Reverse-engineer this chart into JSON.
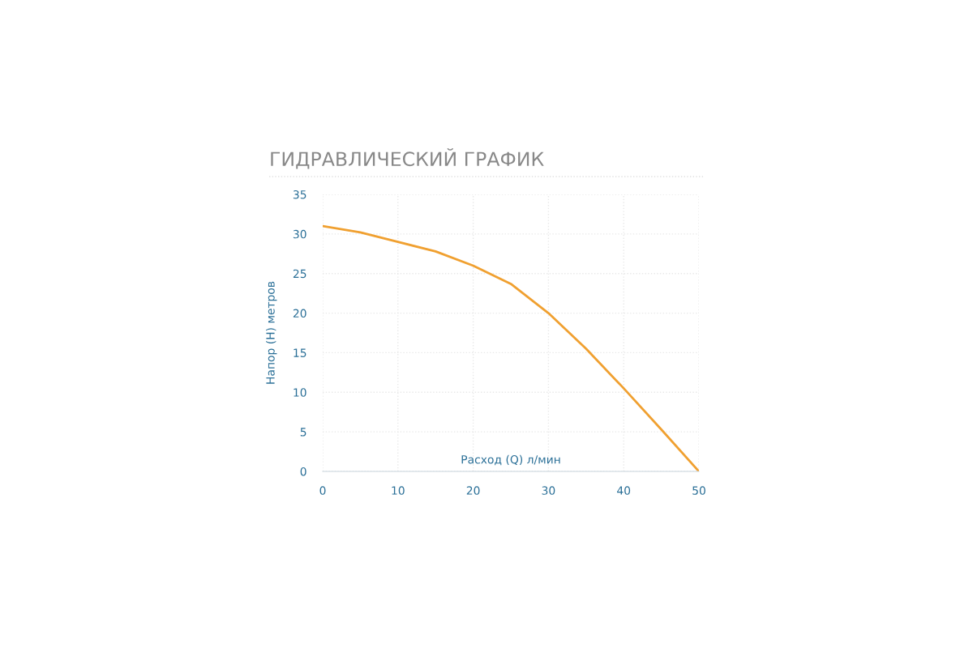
{
  "chart_data": {
    "type": "line",
    "title": "ГИДРАВЛИЧЕСКИЙ ГРАФИК",
    "xlabel": "Расход (Q) л/мин",
    "ylabel": "Напор (H) метров",
    "x": [
      0,
      5,
      10,
      15,
      20,
      25,
      30,
      35,
      40,
      45,
      50
    ],
    "series": [
      {
        "color": "#f0a030",
        "values": [
          31,
          30.2,
          29,
          27.8,
          26,
          23.7,
          20,
          15.5,
          10.5,
          5.3,
          0
        ]
      }
    ],
    "xlim": [
      0,
      50
    ],
    "ylim": [
      0,
      35
    ],
    "xticks": [
      0,
      10,
      20,
      30,
      40,
      50
    ],
    "yticks": [
      0,
      5,
      10,
      15,
      20,
      25,
      30,
      35
    ],
    "grid": true,
    "marker": "none",
    "line_style": "solid"
  }
}
